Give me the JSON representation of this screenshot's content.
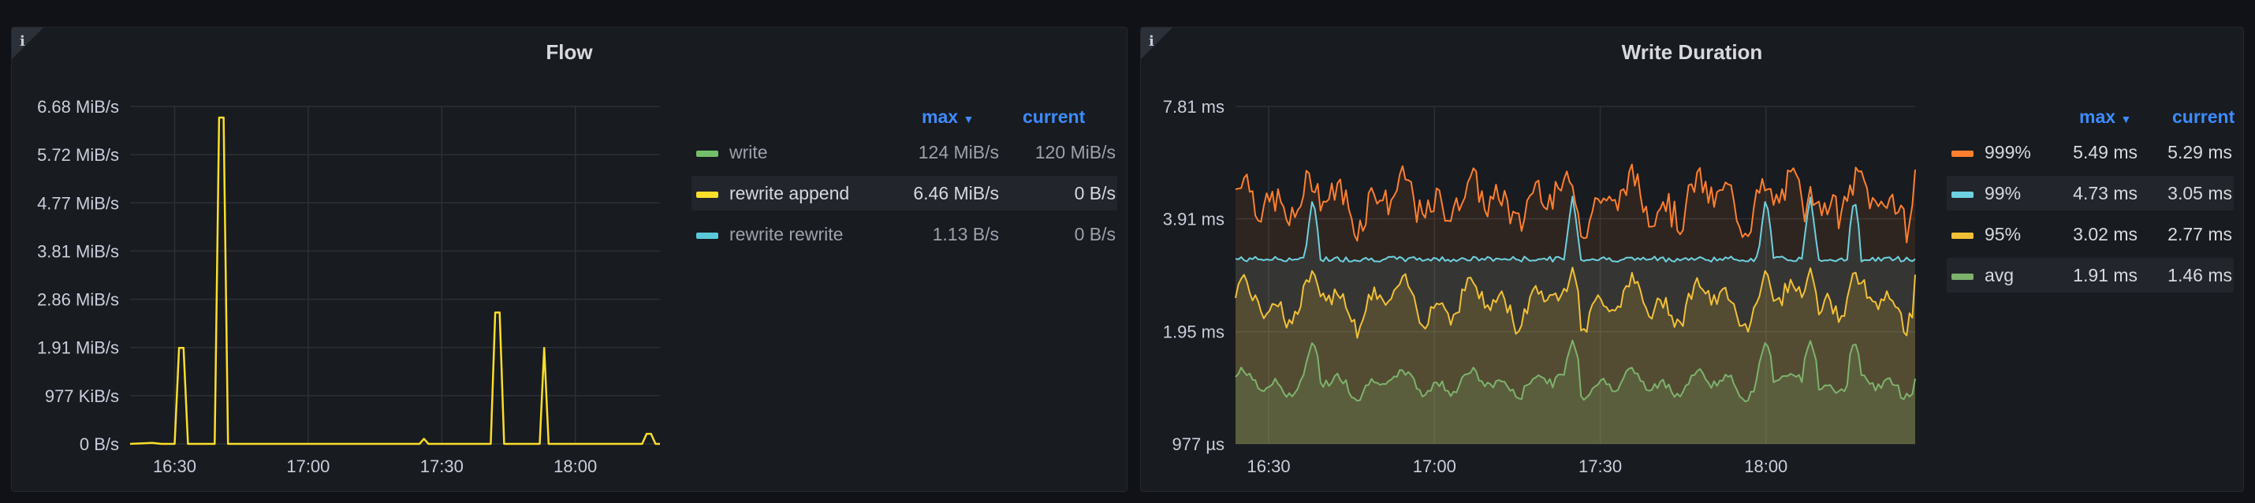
{
  "flow": {
    "title": "Flow",
    "info_icon": "info-icon",
    "legend": {
      "max_label": "max",
      "current_label": "current",
      "rows": [
        {
          "name": "write",
          "color": "#73bf69",
          "max": "124 MiB/s",
          "current": "120 MiB/s"
        },
        {
          "name": "rewrite append",
          "color": "#fade2a",
          "max": "6.46 MiB/s",
          "current": "0 B/s"
        },
        {
          "name": "rewrite rewrite",
          "color": "#5ac8d9",
          "max": "1.13 B/s",
          "current": "0 B/s"
        }
      ]
    }
  },
  "write_duration": {
    "title": "Write Duration",
    "info_icon": "info-icon",
    "legend": {
      "max_label": "max",
      "current_label": "current",
      "rows": [
        {
          "name": "999%",
          "color": "#ff7f2f",
          "max": "5.49 ms",
          "current": "5.29 ms"
        },
        {
          "name": "99%",
          "color": "#6ed0e0",
          "max": "4.73 ms",
          "current": "3.05 ms"
        },
        {
          "name": "95%",
          "color": "#f2c037",
          "max": "3.02 ms",
          "current": "2.77 ms"
        },
        {
          "name": "avg",
          "color": "#7eb26d",
          "max": "1.91 ms",
          "current": "1.46 ms"
        }
      ]
    }
  },
  "chart_data": [
    {
      "type": "line",
      "title": "Flow",
      "y_ticks": [
        "0 B/s",
        "977 KiB/s",
        "1.91 MiB/s",
        "2.86 MiB/s",
        "3.81 MiB/s",
        "4.77 MiB/s",
        "5.72 MiB/s",
        "6.68 MiB/s"
      ],
      "x_ticks": [
        "16:30",
        "17:00",
        "17:30",
        "18:00"
      ],
      "ylim_mib_s": [
        0,
        6.68
      ],
      "grid": true,
      "legend_position": "right",
      "series": [
        {
          "name": "rewrite append",
          "color": "#fade2a",
          "unit": "MiB/s",
          "points": [
            [
              "16:20",
              0
            ],
            [
              "16:25",
              0.02
            ],
            [
              "16:27",
              0
            ],
            [
              "16:30",
              0
            ],
            [
              "16:31",
              1.9
            ],
            [
              "16:32",
              1.9
            ],
            [
              "16:33",
              0
            ],
            [
              "16:39",
              0
            ],
            [
              "16:40",
              6.46
            ],
            [
              "16:41",
              6.46
            ],
            [
              "16:42",
              0
            ],
            [
              "17:25",
              0
            ],
            [
              "17:26",
              0.1
            ],
            [
              "17:27",
              0
            ],
            [
              "17:41",
              0
            ],
            [
              "17:42",
              2.6
            ],
            [
              "17:43",
              2.6
            ],
            [
              "17:44",
              0
            ],
            [
              "17:52",
              0
            ],
            [
              "17:53",
              1.9
            ],
            [
              "17:54",
              0
            ],
            [
              "18:15",
              0
            ],
            [
              "18:16",
              0.2
            ],
            [
              "18:17",
              0.2
            ],
            [
              "18:18",
              0
            ],
            [
              "18:19",
              0
            ]
          ]
        }
      ]
    },
    {
      "type": "area",
      "title": "Write Duration",
      "y_ticks": [
        "977 µs",
        "1.95 ms",
        "3.91 ms",
        "7.81 ms"
      ],
      "y_scale": "log2",
      "x_ticks": [
        "16:30",
        "17:00",
        "17:30",
        "18:00"
      ],
      "ylim_ms": [
        0.977,
        7.81
      ],
      "grid": true,
      "legend_position": "right",
      "series": [
        {
          "name": "999%",
          "color": "#ff7f2f",
          "unit": "ms",
          "max": 5.49,
          "current": 5.29,
          "typical_range": [
            3.5,
            5.5
          ]
        },
        {
          "name": "99%",
          "color": "#6ed0e0",
          "unit": "ms",
          "max": 4.73,
          "current": 3.05,
          "typical_range": [
            2.95,
            3.2
          ],
          "spikes_at": [
            "16:38",
            "17:25",
            "18:00",
            "18:08",
            "18:16"
          ]
        },
        {
          "name": "95%",
          "color": "#f2c037",
          "unit": "ms",
          "max": 3.02,
          "current": 2.77,
          "typical_range": [
            1.9,
            2.9
          ]
        },
        {
          "name": "avg",
          "color": "#7eb26d",
          "unit": "ms",
          "max": 1.91,
          "current": 1.46,
          "typical_range": [
            1.2,
            1.9
          ]
        }
      ]
    }
  ]
}
